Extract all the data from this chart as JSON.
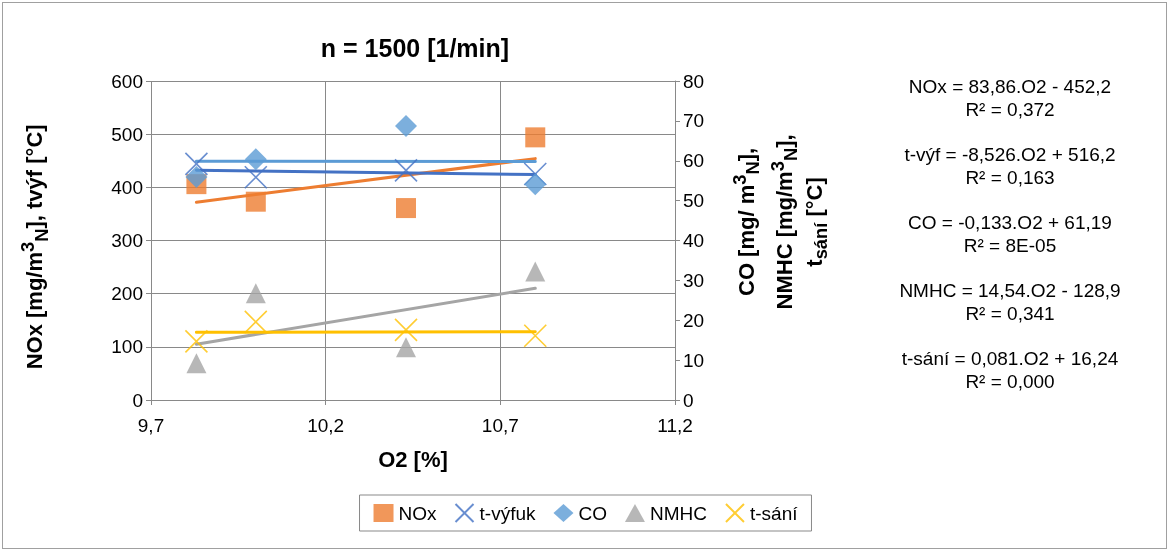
{
  "chart_data": {
    "type": "scatter",
    "title": "n = 1500 [1/min]",
    "xlabel": "O2 [%]",
    "ylabel": "NOx [mg/m$^{3}$$_{N}$], tvýf [°C]",
    "y2label": "CO [mg/ m$^{3}$$_{N}$], NMHC [mg/m$^{3}$$_{N}$], t$_{sání}$ [°C]",
    "xlim": [
      9.7,
      11.2
    ],
    "xticks": [
      {
        "value": 9.7,
        "label": "9,7"
      },
      {
        "value": 10.2,
        "label": "10,2"
      },
      {
        "value": 10.7,
        "label": "10,7"
      },
      {
        "value": 11.2,
        "label": "11,2"
      }
    ],
    "ylim": [
      0,
      600
    ],
    "yticks": [
      0,
      100,
      200,
      300,
      400,
      500,
      600
    ],
    "y2lim": [
      0,
      80
    ],
    "y2ticks": [
      0,
      10,
      20,
      30,
      40,
      50,
      60,
      70,
      80
    ],
    "grid": true,
    "legend": "bottom",
    "series": [
      {
        "name": "NOx",
        "color": "#ed7d31",
        "marker": "square",
        "x": [
          9.83,
          10.0,
          10.43,
          10.8
        ],
        "values": [
          406,
          373,
          361,
          494
        ]
      },
      {
        "name": "t-výfuk",
        "color": "#4472c4",
        "marker": "cross",
        "x": [
          9.83,
          10.0,
          10.43,
          10.8
        ],
        "values": [
          444,
          419,
          432,
          425
        ]
      },
      {
        "name": "CO",
        "color": "#5b9bd5",
        "marker": "diamond",
        "axis": "y2",
        "x": [
          9.83,
          10.0,
          10.43,
          10.8
        ],
        "values": [
          55.9,
          60.4,
          68.7,
          54.1
        ]
      },
      {
        "name": "NMHC",
        "color": "#a5a5a5",
        "marker": "triangle",
        "axis": "y2",
        "x": [
          9.83,
          10.0,
          10.43,
          10.8
        ],
        "values": [
          9.2,
          26.8,
          13.2,
          32.2
        ]
      },
      {
        "name": "t-sání",
        "color": "#ffc000",
        "marker": "cross",
        "axis": "y2",
        "x": [
          9.83,
          10.0,
          10.43,
          10.8
        ],
        "values": [
          14.7,
          19.6,
          17.6,
          16.1
        ]
      },
      {
        "type": "line",
        "color": "#ed7d31",
        "x": [
          9.83,
          10.8
        ],
        "values": [
          372,
          454
        ]
      },
      {
        "type": "line",
        "color": "#4472c4",
        "x": [
          9.83,
          10.8
        ],
        "values": [
          432,
          424
        ]
      },
      {
        "type": "line",
        "color": "#5b9bd5",
        "axis": "y2",
        "x": [
          9.83,
          10.8
        ],
        "values": [
          59.9,
          59.8
        ]
      },
      {
        "type": "line",
        "color": "#a5a5a5",
        "axis": "y2",
        "x": [
          9.83,
          10.8
        ],
        "values": [
          14,
          28
        ]
      },
      {
        "type": "line",
        "color": "#ffc000",
        "axis": "y2",
        "x": [
          9.83,
          10.8
        ],
        "values": [
          17.0,
          17.1
        ]
      }
    ],
    "annotations": [
      "NOx = 83,86.O2 - 452,2",
      "R² = 0,372",
      "t-výf = -8,526.O2 + 516,2",
      "R² = 0,163",
      "CO = -0,133.O2 + 61,19",
      "R² = 8E-05",
      "NMHC = 14,54.O2 - 128,9",
      "R² = 0,341",
      "t-sání = 0,081.O2 + 16,24",
      "R² = 0,000"
    ]
  }
}
